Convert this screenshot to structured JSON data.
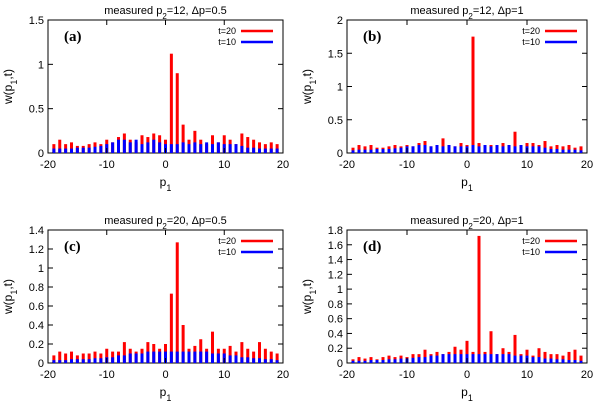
{
  "chart_data": [
    {
      "type": "bar",
      "panel_label": "(a)",
      "title_main": "measured p",
      "title_sub": "2",
      "title_rest": "=12, Δp=0.5",
      "xlabel_main": "p",
      "xlabel_sub": "1",
      "ylabel": "w(p",
      "ylabel_sub": "1",
      "ylabel_rest": ",t)",
      "xlim": [
        -20,
        20
      ],
      "ylim": [
        0,
        1.5
      ],
      "xticks": [
        "-20",
        "-10",
        "0",
        "10",
        "20"
      ],
      "yticks": [
        "0",
        "0.5",
        "1",
        "1.5"
      ],
      "legend_position": "top-right",
      "series": [
        {
          "name": "t=20",
          "color": "#ff0000",
          "x": [
            -19,
            -18,
            -17,
            -16,
            -15,
            -14,
            -13,
            -12,
            -11,
            -10,
            -9,
            -8,
            -7,
            -6,
            -5,
            -4,
            -3,
            -2,
            -1,
            0,
            1,
            2,
            3,
            4,
            5,
            6,
            7,
            8,
            9,
            10,
            11,
            12,
            13,
            14,
            15,
            16,
            17,
            18,
            19
          ],
          "values": [
            0.1,
            0.15,
            0.1,
            0.12,
            0.08,
            0.08,
            0.1,
            0.12,
            0.1,
            0.15,
            0.12,
            0.18,
            0.22,
            0.15,
            0.12,
            0.2,
            0.18,
            0.22,
            0.2,
            0.15,
            1.12,
            0.9,
            0.32,
            0.15,
            0.25,
            0.15,
            0.1,
            0.2,
            0.12,
            0.2,
            0.15,
            0.1,
            0.22,
            0.18,
            0.15,
            0.12,
            0.1,
            0.12,
            0.1
          ]
        },
        {
          "name": "t=10",
          "color": "#0000ff",
          "x": [
            -19,
            -18,
            -17,
            -16,
            -15,
            -14,
            -13,
            -12,
            -11,
            -10,
            -9,
            -8,
            -7,
            -6,
            -5,
            -4,
            -3,
            -2,
            -1,
            0,
            1,
            2,
            3,
            4,
            5,
            6,
            7,
            8,
            9,
            10,
            11,
            12,
            13,
            14,
            15,
            16,
            17,
            18,
            19
          ],
          "values": [
            0.05,
            0.05,
            0.05,
            0.05,
            0.06,
            0.06,
            0.06,
            0.07,
            0.08,
            0.1,
            0.12,
            0.15,
            0.15,
            0.12,
            0.15,
            0.1,
            0.12,
            0.15,
            0.12,
            0.1,
            0.1,
            0.1,
            0.12,
            0.1,
            0.12,
            0.1,
            0.12,
            0.1,
            0.12,
            0.1,
            0.1,
            0.1,
            0.08,
            0.06,
            0.06,
            0.05,
            0.05,
            0.05,
            0.05
          ]
        }
      ]
    },
    {
      "type": "bar",
      "panel_label": "(b)",
      "title_main": "measured p",
      "title_sub": "2",
      "title_rest": "=12, Δp=1",
      "xlabel_main": "p",
      "xlabel_sub": "1",
      "ylabel": "w(p",
      "ylabel_sub": "1",
      "ylabel_rest": ",t)",
      "xlim": [
        -20,
        20
      ],
      "ylim": [
        0,
        2
      ],
      "xticks": [
        "-20",
        "-10",
        "0",
        "10",
        "20"
      ],
      "yticks": [
        "0",
        "0.5",
        "1",
        "1.5",
        "2"
      ],
      "legend_position": "top-right",
      "series": [
        {
          "name": "t=20",
          "color": "#ff0000",
          "x": [
            -19,
            -18,
            -17,
            -16,
            -15,
            -14,
            -13,
            -12,
            -11,
            -10,
            -9,
            -8,
            -7,
            -6,
            -5,
            -4,
            -3,
            -2,
            -1,
            0,
            1,
            2,
            3,
            4,
            5,
            6,
            7,
            8,
            9,
            10,
            11,
            12,
            13,
            14,
            15,
            16,
            17,
            18,
            19
          ],
          "values": [
            0.08,
            0.12,
            0.1,
            0.12,
            0.08,
            0.08,
            0.1,
            0.12,
            0.1,
            0.12,
            0.1,
            0.15,
            0.18,
            0.1,
            0.12,
            0.22,
            0.12,
            0.1,
            0.15,
            0.12,
            1.75,
            0.15,
            0.1,
            0.12,
            0.1,
            0.15,
            0.12,
            0.32,
            0.1,
            0.15,
            0.15,
            0.12,
            0.18,
            0.1,
            0.12,
            0.1,
            0.12,
            0.08,
            0.1
          ]
        },
        {
          "name": "t=10",
          "color": "#0000ff",
          "x": [
            -19,
            -18,
            -17,
            -16,
            -15,
            -14,
            -13,
            -12,
            -11,
            -10,
            -9,
            -8,
            -7,
            -6,
            -5,
            -4,
            -3,
            -2,
            -1,
            0,
            1,
            2,
            3,
            4,
            5,
            6,
            7,
            8,
            9,
            10,
            11,
            12,
            13,
            14,
            15,
            16,
            17,
            18,
            19
          ],
          "values": [
            0.04,
            0.05,
            0.05,
            0.05,
            0.06,
            0.06,
            0.06,
            0.07,
            0.08,
            0.1,
            0.1,
            0.12,
            0.12,
            0.1,
            0.12,
            0.1,
            0.12,
            0.1,
            0.1,
            0.1,
            0.12,
            0.1,
            0.12,
            0.1,
            0.12,
            0.1,
            0.12,
            0.1,
            0.12,
            0.1,
            0.1,
            0.1,
            0.08,
            0.06,
            0.06,
            0.05,
            0.05,
            0.05,
            0.04
          ]
        }
      ]
    },
    {
      "type": "bar",
      "panel_label": "(c)",
      "title_main": "measured p",
      "title_sub": "2",
      "title_rest": "=20, Δp=0.5",
      "xlabel_main": "p",
      "xlabel_sub": "1",
      "ylabel": "w(p",
      "ylabel_sub": "1",
      "ylabel_rest": ",t)",
      "xlim": [
        -20,
        20
      ],
      "ylim": [
        0,
        1.4
      ],
      "xticks": [
        "-20",
        "-10",
        "0",
        "10",
        "20"
      ],
      "yticks": [
        "0",
        "0.2",
        "0.4",
        "0.6",
        "0.8",
        "1",
        "1.2",
        "1.4"
      ],
      "legend_position": "top-right",
      "series": [
        {
          "name": "t=20",
          "color": "#ff0000",
          "x": [
            -19,
            -18,
            -17,
            -16,
            -15,
            -14,
            -13,
            -12,
            -11,
            -10,
            -9,
            -8,
            -7,
            -6,
            -5,
            -4,
            -3,
            -2,
            -1,
            0,
            1,
            2,
            3,
            4,
            5,
            6,
            7,
            8,
            9,
            10,
            11,
            12,
            13,
            14,
            15,
            16,
            17,
            18,
            19
          ],
          "values": [
            0.08,
            0.12,
            0.1,
            0.12,
            0.08,
            0.1,
            0.1,
            0.12,
            0.1,
            0.15,
            0.12,
            0.12,
            0.22,
            0.15,
            0.12,
            0.15,
            0.22,
            0.2,
            0.15,
            0.2,
            0.73,
            1.27,
            0.4,
            0.15,
            0.18,
            0.25,
            0.15,
            0.33,
            0.15,
            0.15,
            0.18,
            0.12,
            0.22,
            0.15,
            0.12,
            0.22,
            0.15,
            0.12,
            0.1
          ]
        },
        {
          "name": "t=10",
          "color": "#0000ff",
          "x": [
            -19,
            -18,
            -17,
            -16,
            -15,
            -14,
            -13,
            -12,
            -11,
            -10,
            -9,
            -8,
            -7,
            -6,
            -5,
            -4,
            -3,
            -2,
            -1,
            0,
            1,
            2,
            3,
            4,
            5,
            6,
            7,
            8,
            9,
            10,
            11,
            12,
            13,
            14,
            15,
            16,
            17,
            18,
            19
          ],
          "values": [
            0.03,
            0.03,
            0.03,
            0.04,
            0.04,
            0.04,
            0.04,
            0.05,
            0.05,
            0.06,
            0.06,
            0.08,
            0.08,
            0.1,
            0.1,
            0.1,
            0.12,
            0.12,
            0.12,
            0.12,
            0.12,
            0.12,
            0.12,
            0.12,
            0.12,
            0.12,
            0.12,
            0.1,
            0.1,
            0.1,
            0.08,
            0.08,
            0.06,
            0.06,
            0.05,
            0.05,
            0.04,
            0.04,
            0.03
          ]
        }
      ]
    },
    {
      "type": "bar",
      "panel_label": "(d)",
      "title_main": "measured p",
      "title_sub": "2",
      "title_rest": "=20, Δp=1",
      "xlabel_main": "p",
      "xlabel_sub": "1",
      "ylabel": "w(p",
      "ylabel_sub": "1",
      "ylabel_rest": ",t)",
      "xlim": [
        -20,
        20
      ],
      "ylim": [
        0,
        1.8
      ],
      "xticks": [
        "-20",
        "-10",
        "0",
        "10",
        "20"
      ],
      "yticks": [
        "0",
        "0.2",
        "0.4",
        "0.6",
        "0.8",
        "1",
        "1.2",
        "1.4",
        "1.6",
        "1.8"
      ],
      "legend_position": "top-right",
      "series": [
        {
          "name": "t=20",
          "color": "#ff0000",
          "x": [
            -19,
            -18,
            -17,
            -16,
            -15,
            -14,
            -13,
            -12,
            -11,
            -10,
            -9,
            -8,
            -7,
            -6,
            -5,
            -4,
            -3,
            -2,
            -1,
            0,
            1,
            2,
            3,
            4,
            5,
            6,
            7,
            8,
            9,
            10,
            11,
            12,
            13,
            14,
            15,
            16,
            17,
            18,
            19
          ],
          "values": [
            0.05,
            0.08,
            0.06,
            0.08,
            0.05,
            0.08,
            0.1,
            0.08,
            0.1,
            0.08,
            0.12,
            0.12,
            0.18,
            0.12,
            0.15,
            0.12,
            0.15,
            0.22,
            0.18,
            0.3,
            0.15,
            1.72,
            0.15,
            0.43,
            0.12,
            0.2,
            0.15,
            0.38,
            0.12,
            0.18,
            0.1,
            0.2,
            0.15,
            0.12,
            0.12,
            0.1,
            0.15,
            0.18,
            0.1
          ]
        },
        {
          "name": "t=10",
          "color": "#0000ff",
          "x": [
            -19,
            -18,
            -17,
            -16,
            -15,
            -14,
            -13,
            -12,
            -11,
            -10,
            -9,
            -8,
            -7,
            -6,
            -5,
            -4,
            -3,
            -2,
            -1,
            0,
            1,
            2,
            3,
            4,
            5,
            6,
            7,
            8,
            9,
            10,
            11,
            12,
            13,
            14,
            15,
            16,
            17,
            18,
            19
          ],
          "values": [
            0.03,
            0.03,
            0.03,
            0.04,
            0.04,
            0.04,
            0.05,
            0.05,
            0.06,
            0.06,
            0.07,
            0.08,
            0.08,
            0.1,
            0.1,
            0.12,
            0.12,
            0.12,
            0.12,
            0.12,
            0.12,
            0.12,
            0.12,
            0.12,
            0.12,
            0.12,
            0.12,
            0.1,
            0.1,
            0.1,
            0.08,
            0.08,
            0.06,
            0.06,
            0.05,
            0.05,
            0.04,
            0.04,
            0.03
          ]
        }
      ]
    }
  ]
}
